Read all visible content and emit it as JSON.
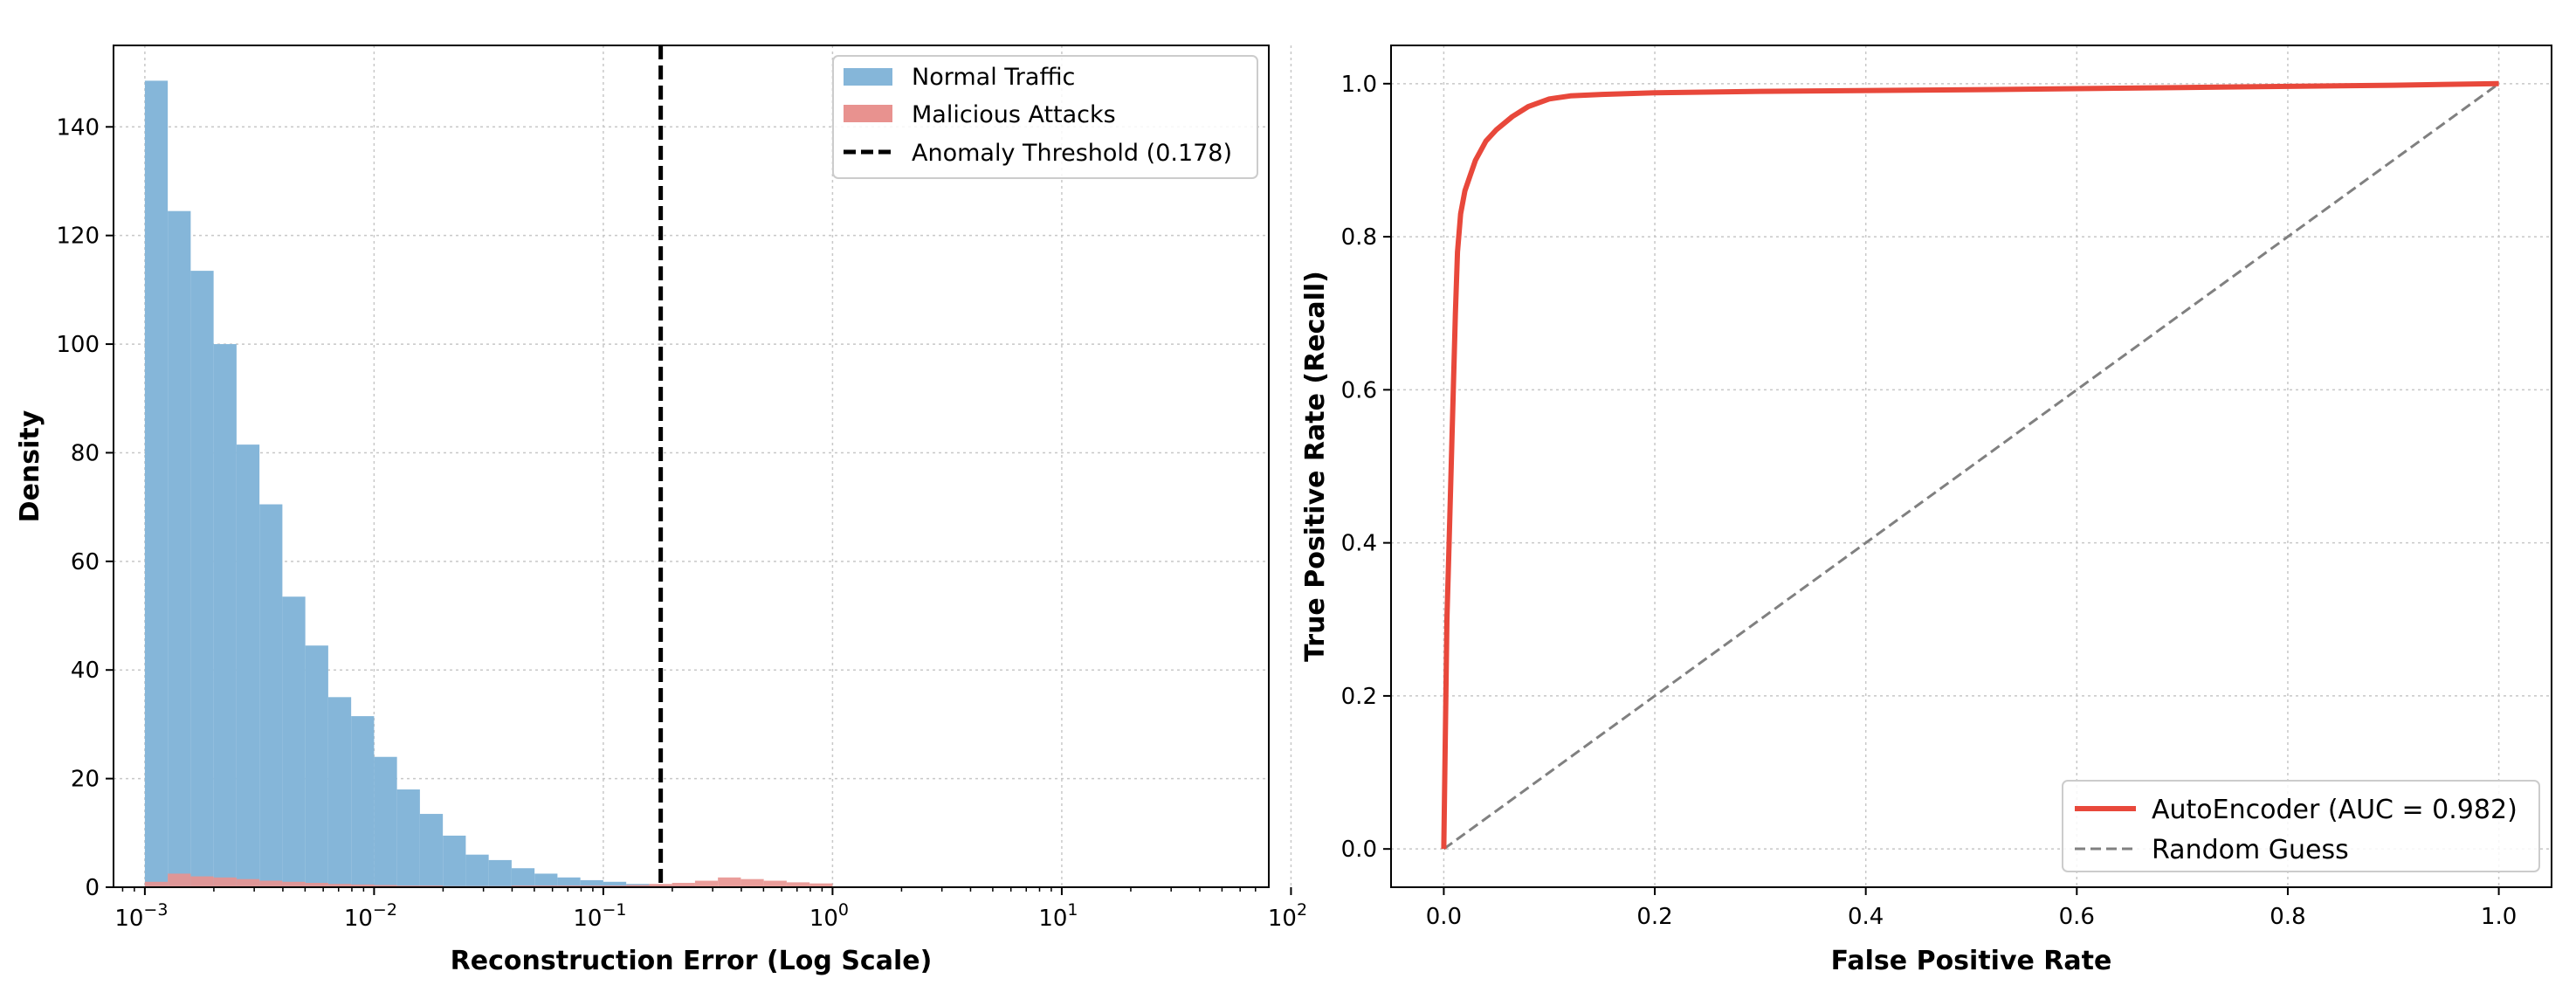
{
  "colors": {
    "normal": "#85b6d9",
    "malicious": "#e8928f",
    "roc": "#e8483b",
    "threshold": "#000000",
    "random": "#808080",
    "grid": "#c8c8c8"
  },
  "chart_data": [
    {
      "type": "bar",
      "subtype": "histogram",
      "xscale": "log",
      "xlim": [
        0.00073,
        80
      ],
      "ylim": [
        0,
        155
      ],
      "xlabel": "Reconstruction Error (Log Scale)",
      "ylabel": "Density",
      "grid": true,
      "legend_position": "top-right",
      "xticks": [
        {
          "value": 0.001,
          "base": "10",
          "exp": "−3"
        },
        {
          "value": 0.01,
          "base": "10",
          "exp": "−2"
        },
        {
          "value": 0.1,
          "base": "10",
          "exp": "−1"
        },
        {
          "value": 1,
          "base": "10",
          "exp": "0"
        },
        {
          "value": 10,
          "base": "10",
          "exp": "1"
        },
        {
          "value": 100,
          "base": "10",
          "exp": "2"
        }
      ],
      "yticks": [
        "0",
        "20",
        "40",
        "60",
        "80",
        "100",
        "120",
        "140"
      ],
      "legend": [
        "Normal Traffic",
        "Malicious Attacks",
        "Anomaly Threshold (0.178)"
      ],
      "threshold": 0.178,
      "bin_edges_log10": [
        -3.0,
        -2.9,
        -2.8,
        -2.7,
        -2.6,
        -2.5,
        -2.4,
        -2.3,
        -2.2,
        -2.1,
        -2.0,
        -1.9,
        -1.8,
        -1.7,
        -1.6,
        -1.5,
        -1.4,
        -1.3,
        -1.2,
        -1.1,
        -1.0,
        -0.9,
        -0.8,
        -0.7,
        -0.6,
        -0.5,
        -0.4,
        -0.3,
        -0.2,
        -0.1,
        0.0
      ],
      "series": [
        {
          "name": "Normal Traffic",
          "values": [
            148.5,
            124.5,
            113.5,
            100.0,
            81.5,
            70.5,
            53.5,
            44.5,
            35.0,
            31.5,
            24.0,
            18.0,
            13.5,
            9.5,
            6.0,
            5.0,
            3.5,
            2.5,
            1.8,
            1.3,
            1.0,
            0.6,
            0.4,
            0.3,
            0,
            0,
            0,
            0,
            0,
            0
          ]
        },
        {
          "name": "Malicious Attacks",
          "values": [
            1.0,
            2.5,
            2.0,
            1.8,
            1.5,
            1.2,
            1.0,
            0.8,
            0.6,
            0.5,
            0.4,
            0.3,
            0.3,
            0.2,
            0.2,
            0.2,
            0.3,
            0.3,
            0.3,
            0.3,
            0.3,
            0.4,
            0.6,
            0.8,
            1.2,
            1.8,
            1.5,
            1.2,
            0.9,
            0.7
          ]
        }
      ]
    },
    {
      "type": "line",
      "xlabel": "False Positive Rate",
      "ylabel": "True Positive Rate (Recall)",
      "xlim": [
        -0.05,
        1.05
      ],
      "ylim": [
        -0.05,
        1.05
      ],
      "grid": true,
      "legend_position": "bottom-right",
      "xticks": [
        "0.0",
        "0.2",
        "0.4",
        "0.6",
        "0.8",
        "1.0"
      ],
      "yticks": [
        "0.0",
        "0.2",
        "0.4",
        "0.6",
        "0.8",
        "1.0"
      ],
      "series": [
        {
          "name": "AutoEncoder (AUC = 0.982)",
          "x": [
            0,
            0.001,
            0.002,
            0.003,
            0.005,
            0.007,
            0.009,
            0.011,
            0.013,
            0.016,
            0.02,
            0.025,
            0.03,
            0.04,
            0.05,
            0.065,
            0.08,
            0.1,
            0.12,
            0.15,
            0.2,
            0.3,
            0.5,
            0.7,
            0.9,
            1.0
          ],
          "y": [
            0,
            0.1,
            0.2,
            0.3,
            0.4,
            0.5,
            0.6,
            0.7,
            0.78,
            0.83,
            0.86,
            0.88,
            0.9,
            0.925,
            0.94,
            0.957,
            0.97,
            0.98,
            0.984,
            0.986,
            0.988,
            0.99,
            0.992,
            0.995,
            0.998,
            1.0
          ]
        },
        {
          "name": "Random Guess",
          "x": [
            0,
            1
          ],
          "y": [
            0,
            1
          ]
        }
      ]
    }
  ]
}
